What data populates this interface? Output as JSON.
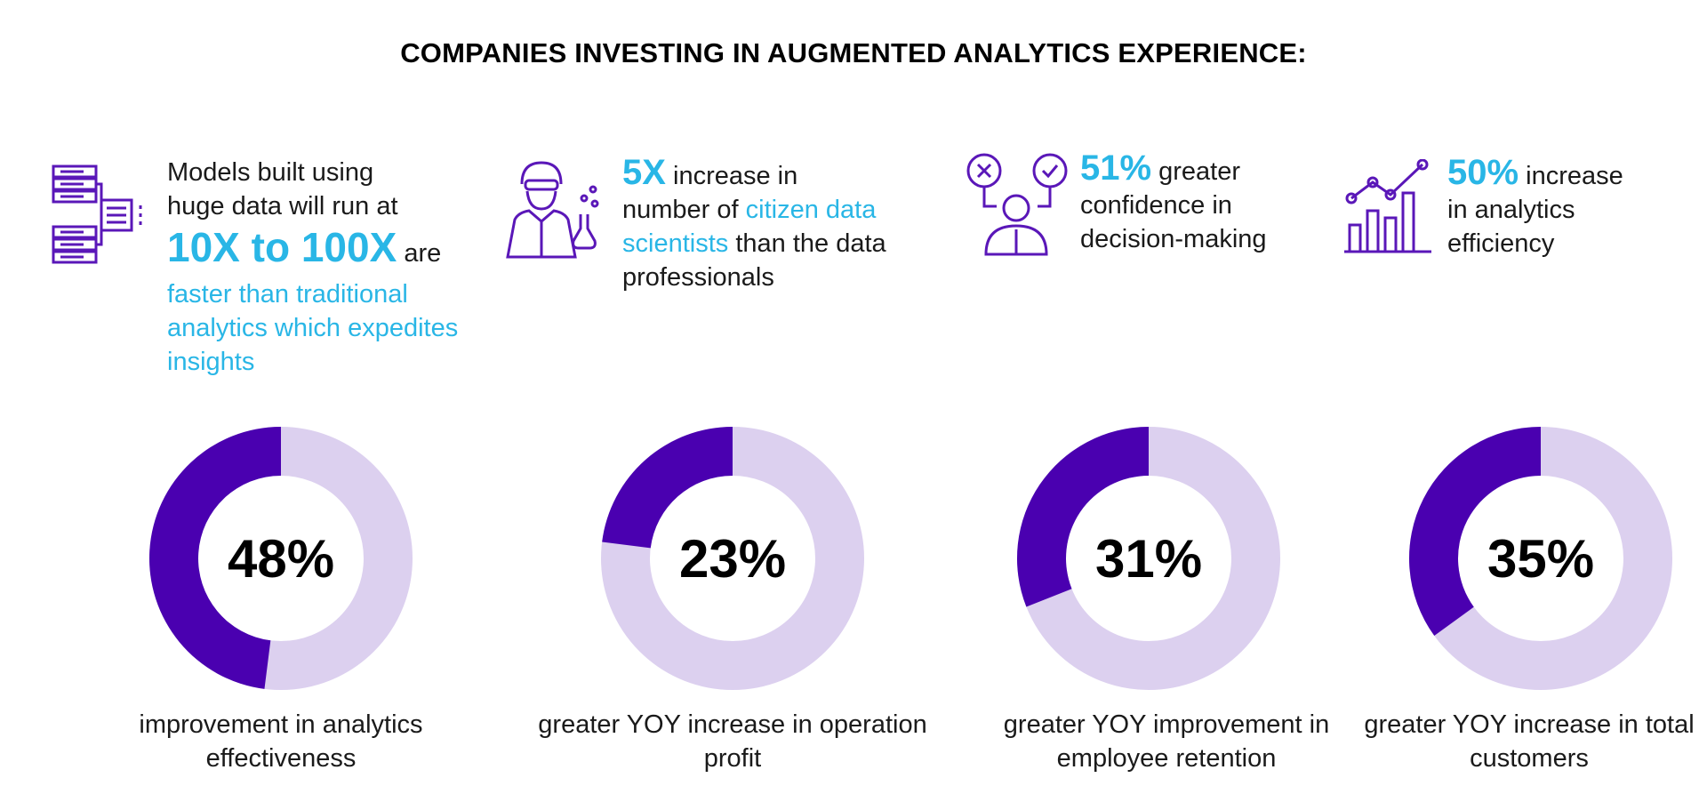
{
  "title": "COMPANIES INVESTING IN AUGMENTED ANALYTICS EXPERIENCE:",
  "stats": [
    {
      "icon": "server-network-icon",
      "line1": "Models built using",
      "line2": "huge data will run at",
      "emph": "10X to 100X",
      "after_emph": "are",
      "highlight": "faster than traditional analytics which expedites insights"
    },
    {
      "icon": "scientist-icon",
      "emph": "5X",
      "after_emph": "increase in",
      "text2": "number of",
      "highlight": "citizen data scientists",
      "text3": "than the data professionals"
    },
    {
      "icon": "decision-maker-icon",
      "emph": "51%",
      "after_emph": "greater",
      "text2": "confidence in decision-making"
    },
    {
      "icon": "bar-line-chart-icon",
      "emph": "50%",
      "after_emph": "increase",
      "text2": "in analytics efficiency"
    }
  ],
  "colors": {
    "accent": "#29b6e6",
    "donut_fill": "#4a00b0",
    "donut_track": "#dcd0ef",
    "icon": "#5a17b8"
  },
  "chart_data": [
    {
      "type": "pie",
      "value_percent": 48,
      "label": "48%",
      "caption": "improvement in analytics effectiveness"
    },
    {
      "type": "pie",
      "value_percent": 23,
      "label": "23%",
      "caption": "greater YOY increase in operation profit"
    },
    {
      "type": "pie",
      "value_percent": 31,
      "label": "31%",
      "caption": "greater YOY improvement in employee retention"
    },
    {
      "type": "pie",
      "value_percent": 35,
      "label": "35%",
      "caption": "greater YOY increase in total customers"
    }
  ]
}
